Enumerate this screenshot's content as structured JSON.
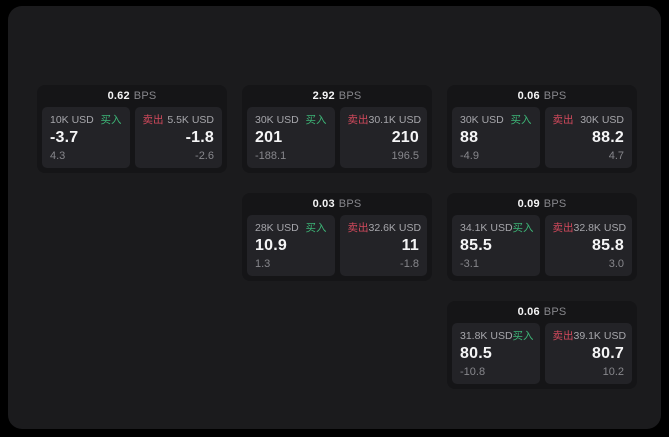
{
  "labels": {
    "bps": "BPS",
    "buy": "买入",
    "sell": "卖出"
  },
  "colors": {
    "outer_bg": "#000000",
    "panel_bg": "#1b1b1d",
    "card_bg": "#151517",
    "tile_bg": "#232327",
    "value_white": "#f5f5f6",
    "label_gray": "#a6a6ab",
    "muted_gray": "#87878c",
    "buy_green": "#3db577",
    "sell_red": "#d2495c"
  },
  "cards": [
    {
      "bps": "0.62",
      "buy": {
        "amount": "10K USD",
        "value": "-3.7",
        "change": "4.3"
      },
      "sell": {
        "amount": "5.5K USD",
        "value": "-1.8",
        "change": "-2.6"
      }
    },
    {
      "bps": "2.92",
      "buy": {
        "amount": "30K USD",
        "value": "201",
        "change": "-188.1"
      },
      "sell": {
        "amount": "30.1K USD",
        "value": "210",
        "change": "196.5"
      }
    },
    {
      "bps": "0.06",
      "buy": {
        "amount": "30K USD",
        "value": "88",
        "change": "-4.9"
      },
      "sell": {
        "amount": "30K USD",
        "value": "88.2",
        "change": "4.7"
      }
    },
    {
      "bps": "0.03",
      "buy": {
        "amount": "28K USD",
        "value": "10.9",
        "change": "1.3"
      },
      "sell": {
        "amount": "32.6K USD",
        "value": "11",
        "change": "-1.8"
      }
    },
    {
      "bps": "0.09",
      "buy": {
        "amount": "34.1K USD",
        "value": "85.5",
        "change": "-3.1"
      },
      "sell": {
        "amount": "32.8K USD",
        "value": "85.8",
        "change": "3.0"
      }
    },
    {
      "bps": "0.06",
      "buy": {
        "amount": "31.8K USD",
        "value": "80.5",
        "change": "-10.8"
      },
      "sell": {
        "amount": "39.1K USD",
        "value": "80.7",
        "change": "10.2"
      }
    }
  ]
}
